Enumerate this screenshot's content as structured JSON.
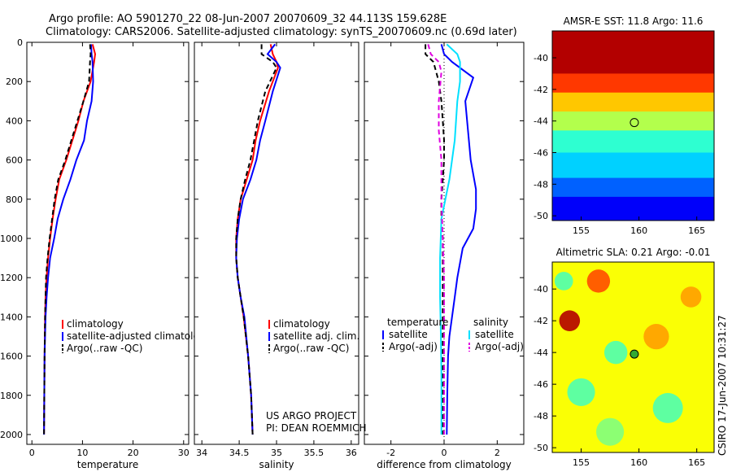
{
  "header": {
    "line1": "Argo profile: AO 5901270_22 08-Jun-2007 20070609_32 44.113S 159.628E",
    "line2": "Climatology: CARS2006. Satellite-adjusted climatology: synTS_20070609.nc (0.69d later)"
  },
  "side_text": "CSIRO 17-Jun-2007 10:31:27",
  "credit": {
    "line1": "US ARGO PROJECT",
    "line2": "PI: DEAN ROEMMICH"
  },
  "colors": {
    "climatology": "#ff0000",
    "satellite": "#0000ff",
    "argo": "#000000",
    "sal_satellite": "#00e0ff",
    "sal_argo": "#e000e0"
  },
  "chart_data": [
    {
      "type": "line",
      "xlabel": "temperature",
      "xlim": [
        -1,
        31
      ],
      "ylim": [
        0,
        2050
      ],
      "y_reversed": true,
      "xticks": [
        "0",
        "10",
        "20",
        "30"
      ],
      "yticks": [
        "0",
        "200",
        "400",
        "600",
        "800",
        "1000",
        "1200",
        "1400",
        "1600",
        "1800",
        "2000"
      ],
      "legend": [
        "climatology",
        "satellite-adjusted climatology",
        "Argo(..raw -QC)"
      ],
      "series": [
        {
          "name": "climatology",
          "color": "#ff0000",
          "dash": "none",
          "width": 2,
          "x": [
            12.0,
            12.5,
            12.3,
            11.6,
            10.2,
            9.2,
            8.0,
            6.8,
            5.4,
            4.7,
            4.1,
            3.6,
            3.2,
            2.9,
            2.7,
            2.6,
            2.5,
            2.4
          ],
          "y": [
            10,
            60,
            100,
            200,
            300,
            400,
            500,
            600,
            700,
            800,
            900,
            1000,
            1100,
            1200,
            1300,
            1400,
            1600,
            2000
          ]
        },
        {
          "name": "satellite-adjusted climatology",
          "color": "#0000ff",
          "dash": "none",
          "width": 2,
          "x": [
            11.7,
            11.8,
            12.0,
            12.1,
            11.8,
            10.9,
            10.3,
            8.8,
            7.6,
            6.2,
            5.1,
            4.4,
            3.6,
            3.2,
            2.9,
            2.7,
            2.5,
            2.4
          ],
          "y": [
            10,
            60,
            100,
            200,
            300,
            400,
            500,
            600,
            700,
            800,
            900,
            1000,
            1100,
            1200,
            1300,
            1400,
            1600,
            2000
          ]
        },
        {
          "name": "Argo(..raw -QC)",
          "color": "#000000",
          "dash": "6,4",
          "width": 2,
          "x": [
            11.5,
            11.6,
            11.5,
            11.3,
            10.2,
            9.0,
            7.8,
            6.6,
            5.2,
            4.5,
            4.0,
            3.5,
            3.1,
            2.8,
            2.7,
            2.6,
            2.5,
            2.4
          ],
          "y": [
            10,
            60,
            100,
            200,
            300,
            400,
            500,
            600,
            700,
            800,
            900,
            1000,
            1100,
            1200,
            1300,
            1400,
            1600,
            2000
          ]
        }
      ]
    },
    {
      "type": "line",
      "xlabel": "salinity",
      "xlim": [
        33.9,
        36.1
      ],
      "ylim": [
        0,
        2050
      ],
      "y_reversed": true,
      "xticks": [
        "34",
        "34.5",
        "35",
        "35.5",
        "36"
      ],
      "yticks": [],
      "legend": [
        "climatology",
        "satellite adj. clim.",
        "Argo(..raw -QC)"
      ],
      "series": [
        {
          "name": "climatology",
          "color": "#ff0000",
          "dash": "none",
          "width": 2,
          "x": [
            34.92,
            34.95,
            35.0,
            35.02,
            34.9,
            34.78,
            34.72,
            34.68,
            34.6,
            34.52,
            34.48,
            34.46,
            34.46,
            34.48,
            34.52,
            34.56,
            34.62,
            34.66,
            34.68
          ],
          "y": [
            10,
            60,
            100,
            130,
            250,
            400,
            500,
            600,
            700,
            800,
            900,
            1000,
            1100,
            1200,
            1300,
            1400,
            1600,
            1800,
            2000
          ]
        },
        {
          "name": "satellite adj. clim.",
          "color": "#0000ff",
          "dash": "none",
          "width": 2,
          "x": [
            34.98,
            34.88,
            35.0,
            35.05,
            34.95,
            34.85,
            34.78,
            34.73,
            34.65,
            34.55,
            34.5,
            34.47,
            34.46,
            34.48,
            34.52,
            34.57,
            34.62,
            34.66,
            34.68
          ],
          "y": [
            10,
            60,
            100,
            130,
            250,
            400,
            500,
            600,
            700,
            800,
            900,
            1000,
            1100,
            1200,
            1300,
            1400,
            1600,
            1800,
            2000
          ]
        },
        {
          "name": "Argo(..raw -QC)",
          "color": "#000000",
          "dash": "6,4",
          "width": 2,
          "x": [
            34.8,
            34.8,
            34.95,
            35.0,
            34.85,
            34.75,
            34.7,
            34.65,
            34.58,
            34.52,
            34.48,
            34.46,
            34.46,
            34.48,
            34.52,
            34.56,
            34.62,
            34.66,
            34.68
          ],
          "y": [
            10,
            60,
            100,
            130,
            250,
            400,
            500,
            600,
            700,
            800,
            900,
            1000,
            1100,
            1200,
            1300,
            1400,
            1600,
            1800,
            2000
          ]
        }
      ]
    },
    {
      "type": "line",
      "xlabel": "difference from climatology",
      "xlim": [
        -3,
        3
      ],
      "ylim": [
        0,
        2050
      ],
      "y_reversed": true,
      "xticks": [
        "-2",
        "0",
        "2"
      ],
      "yticks": [],
      "legend_groups": [
        {
          "title": "temperature",
          "items": [
            "satellite",
            "Argo(-adj)"
          ]
        },
        {
          "title": "salinity",
          "items": [
            "satellite",
            "Argo(-adj)"
          ]
        }
      ],
      "series": [
        {
          "name": "temperature satellite",
          "color": "#0000ff",
          "dash": "none",
          "width": 2,
          "x": [
            -0.1,
            0.0,
            0.3,
            1.1,
            0.8,
            0.9,
            1.0,
            1.2,
            1.2,
            1.1,
            0.7,
            0.5,
            0.4,
            0.3,
            0.2,
            0.15,
            0.12,
            0.1
          ],
          "y": [
            10,
            60,
            100,
            180,
            300,
            450,
            600,
            750,
            850,
            950,
            1050,
            1200,
            1300,
            1400,
            1500,
            1600,
            1800,
            2000
          ]
        },
        {
          "name": "temperature Argo(-adj)",
          "color": "#000000",
          "dash": "6,4",
          "width": 2,
          "x": [
            -0.7,
            -0.7,
            -0.4,
            -0.2,
            -0.1,
            -0.05,
            0.0,
            0.0,
            -0.05,
            -0.1,
            -0.1,
            -0.05,
            -0.05,
            -0.05,
            -0.05,
            -0.05,
            -0.05,
            -0.05
          ],
          "y": [
            10,
            60,
            100,
            200,
            300,
            400,
            500,
            600,
            700,
            800,
            900,
            1000,
            1100,
            1200,
            1400,
            1600,
            1800,
            2000
          ]
        },
        {
          "name": "salinity satellite",
          "color": "#00e0ff",
          "dash": "none",
          "width": 2,
          "x": [
            0.1,
            0.5,
            0.6,
            0.6,
            0.5,
            0.45,
            0.4,
            0.3,
            0.2,
            0.05,
            -0.1,
            -0.15,
            -0.15,
            -0.12,
            -0.1,
            -0.1,
            -0.1
          ],
          "y": [
            10,
            60,
            100,
            200,
            300,
            400,
            500,
            600,
            700,
            800,
            900,
            1100,
            1300,
            1500,
            1700,
            1900,
            2000
          ]
        },
        {
          "name": "salinity Argo(-adj)",
          "color": "#e000e0",
          "dash": "6,4",
          "width": 2,
          "x": [
            -0.6,
            -0.5,
            -0.2,
            -0.1,
            -0.2,
            -0.2,
            -0.1,
            -0.1,
            -0.05,
            0.0,
            0.0,
            0.0,
            0.0,
            0.0
          ],
          "y": [
            10,
            60,
            100,
            150,
            300,
            450,
            600,
            800,
            1000,
            1200,
            1400,
            1600,
            1800,
            2000
          ]
        }
      ]
    },
    {
      "type": "heatmap",
      "title": "AMSR-E SST: 11.8 Argo: 11.6",
      "xlim": [
        152.5,
        166.5
      ],
      "ylim": [
        -50.3,
        -38.3
      ],
      "xticks": [
        "155",
        "160",
        "165"
      ],
      "yticks": [
        "-40",
        "-42",
        "-44",
        "-46",
        "-48",
        "-50"
      ],
      "palette": "jet",
      "bands": [
        {
          "lat_from": -38.3,
          "lat_to": -41.0,
          "value": 0.95
        },
        {
          "lat_from": -41.0,
          "lat_to": -42.2,
          "value": 0.82
        },
        {
          "lat_from": -42.2,
          "lat_to": -43.4,
          "value": 0.68
        },
        {
          "lat_from": -43.4,
          "lat_to": -44.6,
          "value": 0.55
        },
        {
          "lat_from": -44.6,
          "lat_to": -46.0,
          "value": 0.42
        },
        {
          "lat_from": -46.0,
          "lat_to": -47.6,
          "value": 0.33
        },
        {
          "lat_from": -47.6,
          "lat_to": -48.8,
          "value": 0.22
        },
        {
          "lat_from": -48.8,
          "lat_to": -50.3,
          "value": 0.12
        }
      ],
      "marker": {
        "lon": 159.6,
        "lat": -44.1,
        "fill": "none"
      }
    },
    {
      "type": "heatmap",
      "title": "Altimetric SLA: 0.21 Argo: -0.01",
      "xlim": [
        152.5,
        166.5
      ],
      "ylim": [
        -50.3,
        -38.3
      ],
      "xticks": [
        "155",
        "160",
        "165"
      ],
      "yticks": [
        "-40",
        "-42",
        "-44",
        "-46",
        "-48",
        "-50"
      ],
      "palette": "jet",
      "background_value": 0.62,
      "blobs": [
        {
          "lon": 154.0,
          "lat": -42.0,
          "r": 0.9,
          "value": 0.95
        },
        {
          "lon": 156.5,
          "lat": -39.5,
          "r": 1.0,
          "value": 0.8
        },
        {
          "lon": 155.0,
          "lat": -46.5,
          "r": 1.2,
          "value": 0.45
        },
        {
          "lon": 158.0,
          "lat": -44.0,
          "r": 1.0,
          "value": 0.45
        },
        {
          "lon": 161.5,
          "lat": -43.0,
          "r": 1.1,
          "value": 0.72
        },
        {
          "lon": 162.5,
          "lat": -47.5,
          "r": 1.3,
          "value": 0.45
        },
        {
          "lon": 164.5,
          "lat": -40.5,
          "r": 0.9,
          "value": 0.72
        },
        {
          "lon": 157.5,
          "lat": -49.0,
          "r": 1.2,
          "value": 0.5
        },
        {
          "lon": 153.5,
          "lat": -39.5,
          "r": 0.8,
          "value": 0.45
        }
      ],
      "marker": {
        "lon": 159.6,
        "lat": -44.1,
        "fill": "#33aa33"
      }
    }
  ]
}
